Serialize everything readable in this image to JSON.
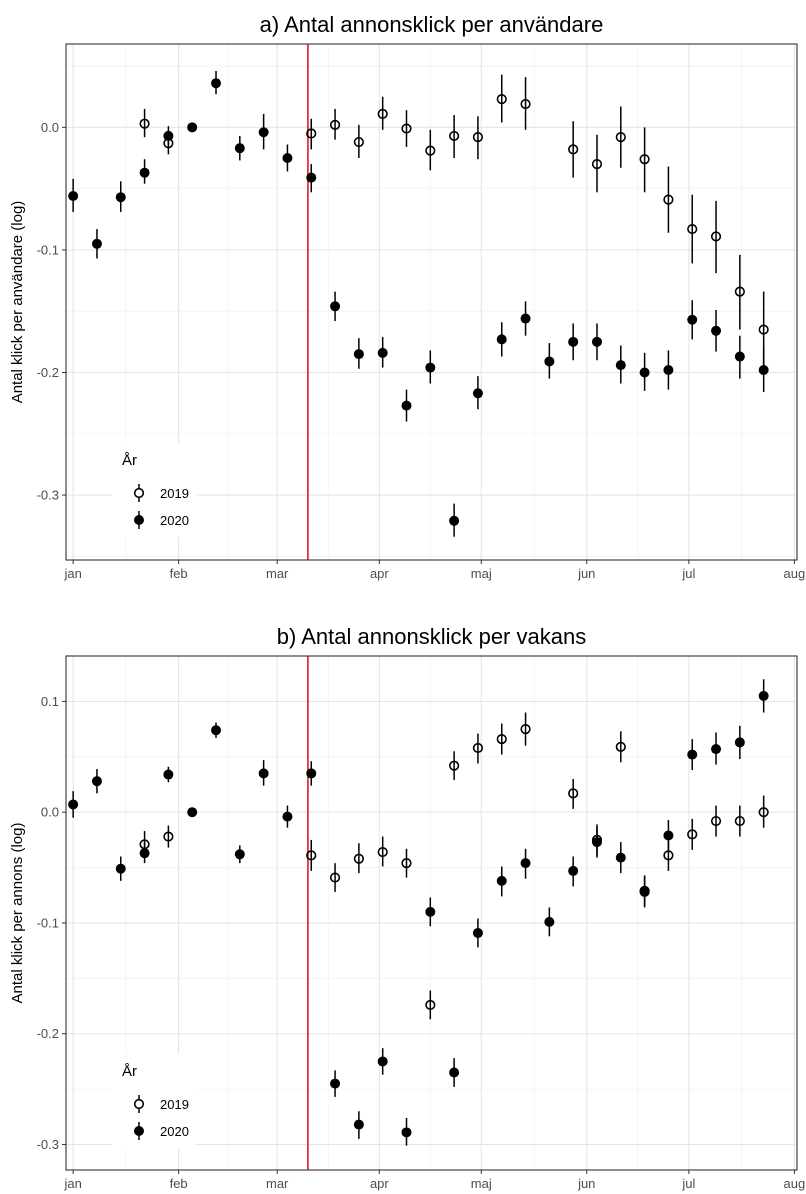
{
  "chart_data": [
    {
      "type": "scatter",
      "title": "a) Antal annonsklick per användare",
      "ylabel": "Antal klick per användare (log)",
      "xlabel": "",
      "x_ticks": [
        "jan",
        "feb",
        "mar",
        "apr",
        "maj",
        "jun",
        "jul",
        "aug"
      ],
      "y_ticks": [
        "0.0",
        "-0.1",
        "-0.2",
        "-0.3"
      ],
      "ylim": [
        -0.353,
        0.068
      ],
      "xlim_week": [
        -0.3,
        30.4
      ],
      "vline_week": 9.86,
      "vline_color": "#e41a1c",
      "grid": true,
      "legend": {
        "title": "År",
        "position": "bottom-left",
        "entries": [
          "2019",
          "2020"
        ]
      },
      "series": [
        {
          "name": "2019",
          "marker": "open-circle",
          "points": [
            {
              "week": 3,
              "y": 0.003,
              "lo": -0.008,
              "hi": 0.015
            },
            {
              "week": 4,
              "y": -0.013,
              "lo": -0.022,
              "hi": -0.003
            },
            {
              "week": 10,
              "y": -0.005,
              "lo": -0.018,
              "hi": 0.007
            },
            {
              "week": 11,
              "y": 0.002,
              "lo": -0.01,
              "hi": 0.015
            },
            {
              "week": 12,
              "y": -0.012,
              "lo": -0.025,
              "hi": 0.002
            },
            {
              "week": 13,
              "y": 0.011,
              "lo": -0.002,
              "hi": 0.025
            },
            {
              "week": 14,
              "y": -0.001,
              "lo": -0.016,
              "hi": 0.014
            },
            {
              "week": 15,
              "y": -0.019,
              "lo": -0.035,
              "hi": -0.002
            },
            {
              "week": 16,
              "y": -0.007,
              "lo": -0.025,
              "hi": 0.01
            },
            {
              "week": 17,
              "y": -0.008,
              "lo": -0.026,
              "hi": 0.009
            },
            {
              "week": 18,
              "y": 0.023,
              "lo": 0.004,
              "hi": 0.043
            },
            {
              "week": 19,
              "y": 0.019,
              "lo": -0.002,
              "hi": 0.041
            },
            {
              "week": 21,
              "y": -0.018,
              "lo": -0.041,
              "hi": 0.005
            },
            {
              "week": 22,
              "y": -0.03,
              "lo": -0.053,
              "hi": -0.006
            },
            {
              "week": 23,
              "y": -0.008,
              "lo": -0.033,
              "hi": 0.017
            },
            {
              "week": 24,
              "y": -0.026,
              "lo": -0.053,
              "hi": 0.0
            },
            {
              "week": 25,
              "y": -0.059,
              "lo": -0.086,
              "hi": -0.032
            },
            {
              "week": 26,
              "y": -0.083,
              "lo": -0.111,
              "hi": -0.055
            },
            {
              "week": 27,
              "y": -0.089,
              "lo": -0.119,
              "hi": -0.06
            },
            {
              "week": 28,
              "y": -0.134,
              "lo": -0.165,
              "hi": -0.104
            },
            {
              "week": 29,
              "y": -0.165,
              "lo": -0.197,
              "hi": -0.134
            }
          ]
        },
        {
          "name": "2020",
          "marker": "filled-circle",
          "points": [
            {
              "week": 0,
              "y": -0.056,
              "lo": -0.069,
              "hi": -0.042
            },
            {
              "week": 1,
              "y": -0.095,
              "lo": -0.107,
              "hi": -0.083
            },
            {
              "week": 2,
              "y": -0.057,
              "lo": -0.069,
              "hi": -0.044
            },
            {
              "week": 3,
              "y": -0.037,
              "lo": -0.046,
              "hi": -0.026
            },
            {
              "week": 4,
              "y": -0.007,
              "lo": -0.015,
              "hi": 0.001
            },
            {
              "week": 5,
              "y": 0.0,
              "lo": 0.0,
              "hi": 0.0
            },
            {
              "week": 6,
              "y": 0.036,
              "lo": 0.027,
              "hi": 0.046
            },
            {
              "week": 7,
              "y": -0.017,
              "lo": -0.027,
              "hi": -0.007
            },
            {
              "week": 8,
              "y": -0.004,
              "lo": -0.018,
              "hi": 0.011
            },
            {
              "week": 9,
              "y": -0.025,
              "lo": -0.036,
              "hi": -0.014
            },
            {
              "week": 10,
              "y": -0.041,
              "lo": -0.053,
              "hi": -0.03
            },
            {
              "week": 11,
              "y": -0.146,
              "lo": -0.158,
              "hi": -0.134
            },
            {
              "week": 12,
              "y": -0.185,
              "lo": -0.197,
              "hi": -0.172
            },
            {
              "week": 13,
              "y": -0.184,
              "lo": -0.196,
              "hi": -0.171
            },
            {
              "week": 14,
              "y": -0.227,
              "lo": -0.24,
              "hi": -0.214
            },
            {
              "week": 15,
              "y": -0.196,
              "lo": -0.209,
              "hi": -0.182
            },
            {
              "week": 16,
              "y": -0.321,
              "lo": -0.334,
              "hi": -0.307
            },
            {
              "week": 17,
              "y": -0.217,
              "lo": -0.23,
              "hi": -0.203
            },
            {
              "week": 18,
              "y": -0.173,
              "lo": -0.187,
              "hi": -0.159
            },
            {
              "week": 19,
              "y": -0.156,
              "lo": -0.17,
              "hi": -0.142
            },
            {
              "week": 20,
              "y": -0.191,
              "lo": -0.205,
              "hi": -0.176
            },
            {
              "week": 21,
              "y": -0.175,
              "lo": -0.19,
              "hi": -0.16
            },
            {
              "week": 22,
              "y": -0.175,
              "lo": -0.19,
              "hi": -0.16
            },
            {
              "week": 23,
              "y": -0.194,
              "lo": -0.209,
              "hi": -0.178
            },
            {
              "week": 24,
              "y": -0.2,
              "lo": -0.215,
              "hi": -0.184
            },
            {
              "week": 25,
              "y": -0.198,
              "lo": -0.214,
              "hi": -0.182
            },
            {
              "week": 26,
              "y": -0.157,
              "lo": -0.173,
              "hi": -0.141
            },
            {
              "week": 27,
              "y": -0.166,
              "lo": -0.183,
              "hi": -0.149
            },
            {
              "week": 28,
              "y": -0.187,
              "lo": -0.205,
              "hi": -0.17
            },
            {
              "week": 29,
              "y": -0.198,
              "lo": -0.216,
              "hi": -0.18
            }
          ]
        }
      ]
    },
    {
      "type": "scatter",
      "title": "b) Antal annonsklick per vakans",
      "ylabel": "Antal klick per annons (log)",
      "xlabel": "",
      "x_ticks": [
        "jan",
        "feb",
        "mar",
        "apr",
        "maj",
        "jun",
        "jul",
        "aug"
      ],
      "y_ticks": [
        "0.1",
        "0.0",
        "-0.1",
        "-0.2",
        "-0.3"
      ],
      "ylim": [
        -0.323,
        0.141
      ],
      "xlim_week": [
        -0.3,
        30.4
      ],
      "vline_week": 9.86,
      "vline_color": "#e41a1c",
      "grid": true,
      "legend": {
        "title": "År",
        "position": "bottom-left",
        "entries": [
          "2019",
          "2020"
        ]
      },
      "series": [
        {
          "name": "2019",
          "marker": "open-circle",
          "points": [
            {
              "week": 3,
              "y": -0.029,
              "lo": -0.04,
              "hi": -0.017
            },
            {
              "week": 4,
              "y": -0.022,
              "lo": -0.032,
              "hi": -0.012
            },
            {
              "week": 10,
              "y": -0.039,
              "lo": -0.053,
              "hi": -0.025
            },
            {
              "week": 11,
              "y": -0.059,
              "lo": -0.072,
              "hi": -0.046
            },
            {
              "week": 12,
              "y": -0.042,
              "lo": -0.055,
              "hi": -0.028
            },
            {
              "week": 13,
              "y": -0.036,
              "lo": -0.049,
              "hi": -0.022
            },
            {
              "week": 14,
              "y": -0.046,
              "lo": -0.059,
              "hi": -0.033
            },
            {
              "week": 15,
              "y": -0.174,
              "lo": -0.187,
              "hi": -0.161
            },
            {
              "week": 16,
              "y": 0.042,
              "lo": 0.029,
              "hi": 0.055
            },
            {
              "week": 17,
              "y": 0.058,
              "lo": 0.044,
              "hi": 0.071
            },
            {
              "week": 18,
              "y": 0.066,
              "lo": 0.052,
              "hi": 0.08
            },
            {
              "week": 19,
              "y": 0.075,
              "lo": 0.06,
              "hi": 0.09
            },
            {
              "week": 21,
              "y": 0.017,
              "lo": 0.003,
              "hi": 0.03
            },
            {
              "week": 22,
              "y": -0.025,
              "lo": -0.039,
              "hi": -0.011
            },
            {
              "week": 23,
              "y": 0.059,
              "lo": 0.045,
              "hi": 0.073
            },
            {
              "week": 24,
              "y": -0.071,
              "lo": -0.085,
              "hi": -0.057
            },
            {
              "week": 25,
              "y": -0.039,
              "lo": -0.053,
              "hi": -0.025
            },
            {
              "week": 26,
              "y": -0.02,
              "lo": -0.034,
              "hi": -0.006
            },
            {
              "week": 27,
              "y": -0.008,
              "lo": -0.022,
              "hi": 0.006
            },
            {
              "week": 28,
              "y": -0.008,
              "lo": -0.022,
              "hi": 0.006
            },
            {
              "week": 29,
              "y": 0.0,
              "lo": -0.014,
              "hi": 0.015
            }
          ]
        },
        {
          "name": "2020",
          "marker": "filled-circle",
          "points": [
            {
              "week": 0,
              "y": 0.007,
              "lo": -0.005,
              "hi": 0.019
            },
            {
              "week": 1,
              "y": 0.028,
              "lo": 0.017,
              "hi": 0.039
            },
            {
              "week": 2,
              "y": -0.051,
              "lo": -0.062,
              "hi": -0.04
            },
            {
              "week": 3,
              "y": -0.037,
              "lo": -0.046,
              "hi": -0.027
            },
            {
              "week": 4,
              "y": 0.034,
              "lo": 0.027,
              "hi": 0.041
            },
            {
              "week": 5,
              "y": 0.0,
              "lo": 0.0,
              "hi": 0.0
            },
            {
              "week": 6,
              "y": 0.074,
              "lo": 0.067,
              "hi": 0.081
            },
            {
              "week": 7,
              "y": -0.038,
              "lo": -0.046,
              "hi": -0.03
            },
            {
              "week": 8,
              "y": 0.035,
              "lo": 0.024,
              "hi": 0.047
            },
            {
              "week": 9,
              "y": -0.004,
              "lo": -0.014,
              "hi": 0.006
            },
            {
              "week": 10,
              "y": 0.035,
              "lo": 0.024,
              "hi": 0.046
            },
            {
              "week": 11,
              "y": -0.245,
              "lo": -0.257,
              "hi": -0.233
            },
            {
              "week": 12,
              "y": -0.282,
              "lo": -0.295,
              "hi": -0.27
            },
            {
              "week": 13,
              "y": -0.225,
              "lo": -0.237,
              "hi": -0.213
            },
            {
              "week": 14,
              "y": -0.289,
              "lo": -0.301,
              "hi": -0.276
            },
            {
              "week": 15,
              "y": -0.09,
              "lo": -0.103,
              "hi": -0.077
            },
            {
              "week": 16,
              "y": -0.235,
              "lo": -0.248,
              "hi": -0.222
            },
            {
              "week": 17,
              "y": -0.109,
              "lo": -0.122,
              "hi": -0.096
            },
            {
              "week": 18,
              "y": -0.062,
              "lo": -0.076,
              "hi": -0.049
            },
            {
              "week": 19,
              "y": -0.046,
              "lo": -0.06,
              "hi": -0.033
            },
            {
              "week": 20,
              "y": -0.099,
              "lo": -0.112,
              "hi": -0.086
            },
            {
              "week": 21,
              "y": -0.053,
              "lo": -0.067,
              "hi": -0.04
            },
            {
              "week": 22,
              "y": -0.027,
              "lo": -0.041,
              "hi": -0.013
            },
            {
              "week": 23,
              "y": -0.041,
              "lo": -0.055,
              "hi": -0.027
            },
            {
              "week": 24,
              "y": -0.072,
              "lo": -0.086,
              "hi": -0.058
            },
            {
              "week": 25,
              "y": -0.021,
              "lo": -0.035,
              "hi": -0.007
            },
            {
              "week": 26,
              "y": 0.052,
              "lo": 0.038,
              "hi": 0.066
            },
            {
              "week": 27,
              "y": 0.057,
              "lo": 0.043,
              "hi": 0.072
            },
            {
              "week": 28,
              "y": 0.063,
              "lo": 0.048,
              "hi": 0.078
            },
            {
              "week": 29,
              "y": 0.105,
              "lo": 0.09,
              "hi": 0.12
            }
          ]
        }
      ]
    }
  ]
}
